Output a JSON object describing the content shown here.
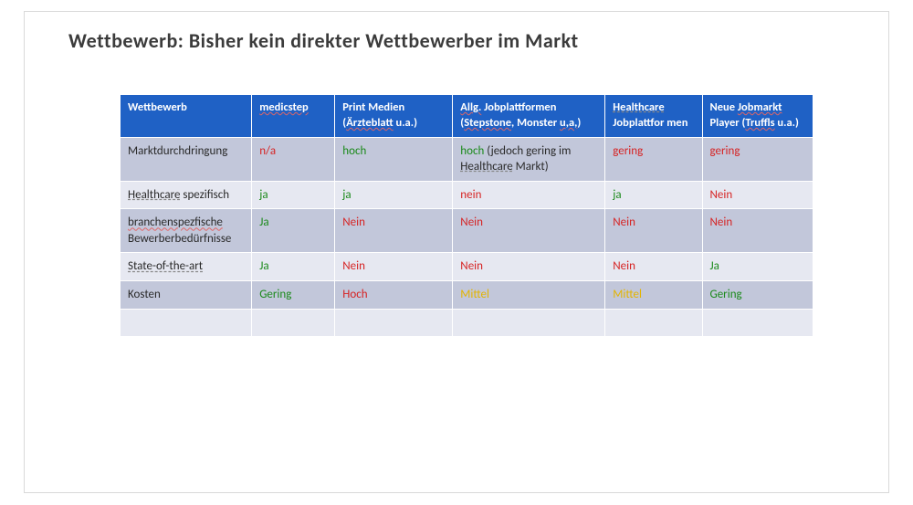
{
  "title": "Wettbewerb: Bisher kein direkter Wettbewerber im Markt",
  "colors": {
    "header_bg": "#1f61c5",
    "row_a_bg": "#c2c7da",
    "row_b_bg": "#e6e8f1",
    "good": "#1b8a1b",
    "bad": "#d62323",
    "mid": "#e3b400",
    "text": "#2a2a2a",
    "border_outer": "#d9d9d9"
  },
  "table": {
    "col_widths_pct": [
      19,
      12,
      17,
      22,
      14,
      16
    ],
    "columns": [
      {
        "plain": "Wettbewerb"
      },
      {
        "plain": "medicstep",
        "underline_wavy": true
      },
      {
        "parts": [
          "Print Medien (",
          {
            "t": "Ärzteblatt",
            "u": "wavy"
          },
          " u.a.)"
        ]
      },
      {
        "parts": [
          {
            "t": "Allg.",
            "u": "wavy"
          },
          " Jobplattformen (",
          {
            "t": "Stepstone",
            "u": "wavy"
          },
          ", Monster ",
          {
            "t": "u,a,",
            "u": "wavy"
          },
          ")"
        ]
      },
      {
        "parts": [
          {
            "t": "Healthcare",
            "u": "dash"
          },
          " Jobplattfor men"
        ]
      },
      {
        "parts": [
          "Neue ",
          {
            "t": "Jobmarkt",
            "u": "wavy"
          },
          " Player (",
          {
            "t": "Truffls",
            "u": "wavy"
          },
          " u.a.)"
        ]
      }
    ],
    "rows": [
      {
        "label_parts": [
          "Marktdurchdringung"
        ],
        "cells": [
          {
            "t": "n/a",
            "c": "r"
          },
          {
            "t": "hoch",
            "c": "g"
          },
          {
            "parts": [
              {
                "t": "hoch",
                "c": "g"
              },
              {
                "t": " (jedoch gering im ",
                "c": "k"
              },
              {
                "t": "Healthcare",
                "c": "k",
                "u": "dash"
              },
              {
                "t": " Markt)",
                "c": "k"
              }
            ]
          },
          {
            "t": "gering",
            "c": "r"
          },
          {
            "t": "gering",
            "c": "r"
          }
        ]
      },
      {
        "label_parts": [
          {
            "t": "Healthcare",
            "u": "dash"
          },
          " spezifisch"
        ],
        "cells": [
          {
            "t": "ja",
            "c": "g"
          },
          {
            "t": "ja",
            "c": "g"
          },
          {
            "t": "nein",
            "c": "r"
          },
          {
            "t": "ja",
            "c": "g"
          },
          {
            "t": "Nein",
            "c": "r"
          }
        ]
      },
      {
        "label_parts": [
          {
            "t": "branchenspezfische",
            "u": "wavy"
          },
          " Bewerberbedürfnisse"
        ],
        "cells": [
          {
            "t": "Ja",
            "c": "g"
          },
          {
            "t": "Nein",
            "c": "r"
          },
          {
            "t": "Nein",
            "c": "r"
          },
          {
            "t": "Nein",
            "c": "r"
          },
          {
            "t": "Nein",
            "c": "r"
          }
        ]
      },
      {
        "label_parts": [
          {
            "t": "State-of-the-art",
            "u": "dash"
          }
        ],
        "cells": [
          {
            "t": "Ja",
            "c": "g"
          },
          {
            "t": "Nein",
            "c": "r"
          },
          {
            "t": "Nein",
            "c": "r"
          },
          {
            "t": "Nein",
            "c": "r"
          },
          {
            "t": "Ja",
            "c": "g"
          }
        ]
      },
      {
        "label_parts": [
          "Kosten"
        ],
        "cells": [
          {
            "t": "Gering",
            "c": "g"
          },
          {
            "t": "Hoch",
            "c": "r"
          },
          {
            "t": "Mittel",
            "c": "y"
          },
          {
            "t": "Mittel",
            "c": "y"
          },
          {
            "t": "Gering",
            "c": "g"
          }
        ]
      },
      {
        "empty": true
      }
    ]
  }
}
